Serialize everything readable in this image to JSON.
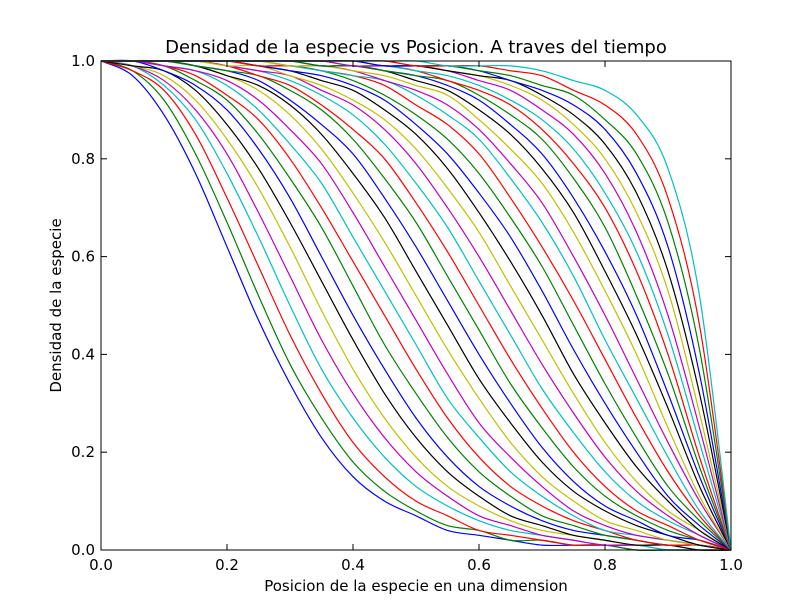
{
  "chart_data": {
    "type": "line",
    "title": "Densidad de la especie vs Posicion. A traves del tiempo",
    "xlabel": "Posicion de la especie en una dimension",
    "ylabel": "Densidad de la especie",
    "xlim": [
      0.0,
      1.0
    ],
    "ylim": [
      0.0,
      1.0
    ],
    "xticks": [
      "0.0",
      "0.2",
      "0.4",
      "0.6",
      "0.8",
      "1.0"
    ],
    "yticks": [
      "0.0",
      "0.2",
      "0.4",
      "0.6",
      "0.8",
      "1.0"
    ],
    "grid": false,
    "legend": "none",
    "color_cycle": [
      "#0000ff",
      "#008000",
      "#ff0000",
      "#00bfbf",
      "#bf00bf",
      "#bfbf00",
      "#000000"
    ],
    "x": [
      0,
      0.05,
      0.1,
      0.15,
      0.2,
      0.25,
      0.3,
      0.35,
      0.4,
      0.45,
      0.5,
      0.55,
      0.6,
      0.65,
      0.7,
      0.75,
      0.8,
      0.85,
      0.9,
      0.95,
      1.0
    ],
    "series": [
      {
        "values": [
          1.0,
          0.97,
          0.89,
          0.77,
          0.62,
          0.47,
          0.34,
          0.23,
          0.15,
          0.1,
          0.07,
          0.04,
          0.03,
          0.02,
          0.01,
          0.01,
          0.01,
          0.0,
          0.0,
          0.0,
          0.0
        ]
      },
      {
        "values": [
          1.0,
          0.98,
          0.92,
          0.81,
          0.67,
          0.52,
          0.38,
          0.27,
          0.18,
          0.12,
          0.08,
          0.05,
          0.04,
          0.02,
          0.02,
          0.01,
          0.01,
          0.0,
          0.0,
          0.0,
          0.0
        ]
      },
      {
        "values": [
          1.0,
          0.98,
          0.94,
          0.85,
          0.72,
          0.58,
          0.44,
          0.32,
          0.22,
          0.15,
          0.1,
          0.07,
          0.04,
          0.03,
          0.02,
          0.01,
          0.01,
          0.01,
          0.0,
          0.0,
          0.0
        ]
      },
      {
        "values": [
          1.0,
          0.99,
          0.95,
          0.88,
          0.77,
          0.64,
          0.5,
          0.37,
          0.27,
          0.19,
          0.13,
          0.09,
          0.06,
          0.04,
          0.03,
          0.02,
          0.01,
          0.01,
          0.0,
          0.0,
          0.0
        ]
      },
      {
        "values": [
          1.0,
          0.99,
          0.96,
          0.9,
          0.81,
          0.69,
          0.56,
          0.43,
          0.32,
          0.23,
          0.16,
          0.11,
          0.07,
          0.05,
          0.03,
          0.02,
          0.01,
          0.01,
          0.01,
          0.0,
          0.0
        ]
      },
      {
        "values": [
          1.0,
          0.99,
          0.97,
          0.92,
          0.84,
          0.74,
          0.62,
          0.49,
          0.37,
          0.27,
          0.19,
          0.13,
          0.09,
          0.06,
          0.04,
          0.03,
          0.02,
          0.01,
          0.01,
          0.0,
          0.0
        ]
      },
      {
        "values": [
          1.0,
          0.99,
          0.98,
          0.94,
          0.87,
          0.78,
          0.67,
          0.55,
          0.43,
          0.32,
          0.23,
          0.16,
          0.11,
          0.07,
          0.05,
          0.03,
          0.02,
          0.01,
          0.01,
          0.0,
          0.0
        ]
      },
      {
        "values": [
          1.0,
          1.0,
          0.98,
          0.95,
          0.9,
          0.82,
          0.72,
          0.6,
          0.48,
          0.37,
          0.27,
          0.19,
          0.13,
          0.09,
          0.06,
          0.04,
          0.03,
          0.02,
          0.01,
          0.01,
          0.0
        ]
      },
      {
        "values": [
          1.0,
          1.0,
          0.99,
          0.96,
          0.92,
          0.85,
          0.76,
          0.66,
          0.54,
          0.42,
          0.32,
          0.23,
          0.16,
          0.11,
          0.07,
          0.05,
          0.03,
          0.02,
          0.01,
          0.01,
          0.0
        ]
      },
      {
        "values": [
          1.0,
          1.0,
          0.99,
          0.97,
          0.93,
          0.88,
          0.8,
          0.7,
          0.59,
          0.48,
          0.37,
          0.27,
          0.19,
          0.13,
          0.09,
          0.06,
          0.04,
          0.02,
          0.01,
          0.01,
          0.0
        ]
      },
      {
        "values": [
          1.0,
          1.0,
          0.99,
          0.98,
          0.95,
          0.9,
          0.83,
          0.75,
          0.64,
          0.53,
          0.42,
          0.31,
          0.23,
          0.16,
          0.11,
          0.07,
          0.04,
          0.03,
          0.02,
          0.01,
          0.0
        ]
      },
      {
        "values": [
          1.0,
          1.0,
          0.99,
          0.98,
          0.96,
          0.92,
          0.86,
          0.79,
          0.69,
          0.58,
          0.47,
          0.36,
          0.26,
          0.19,
          0.13,
          0.08,
          0.05,
          0.03,
          0.02,
          0.01,
          0.0
        ]
      },
      {
        "values": [
          1.0,
          1.0,
          1.0,
          0.99,
          0.97,
          0.94,
          0.89,
          0.82,
          0.73,
          0.63,
          0.52,
          0.41,
          0.31,
          0.22,
          0.15,
          0.1,
          0.06,
          0.04,
          0.02,
          0.01,
          0.0
        ]
      },
      {
        "values": [
          1.0,
          1.0,
          1.0,
          0.99,
          0.97,
          0.95,
          0.91,
          0.85,
          0.77,
          0.68,
          0.57,
          0.46,
          0.35,
          0.26,
          0.18,
          0.12,
          0.08,
          0.05,
          0.03,
          0.01,
          0.0
        ]
      },
      {
        "values": [
          1.0,
          1.0,
          1.0,
          0.99,
          0.98,
          0.96,
          0.92,
          0.87,
          0.81,
          0.72,
          0.62,
          0.51,
          0.4,
          0.3,
          0.21,
          0.14,
          0.09,
          0.06,
          0.03,
          0.02,
          0.0
        ]
      },
      {
        "values": [
          1.0,
          1.0,
          1.0,
          0.99,
          0.98,
          0.97,
          0.94,
          0.9,
          0.84,
          0.76,
          0.67,
          0.56,
          0.45,
          0.34,
          0.25,
          0.17,
          0.11,
          0.07,
          0.04,
          0.02,
          0.0
        ]
      },
      {
        "values": [
          1.0,
          1.0,
          1.0,
          1.0,
          0.99,
          0.97,
          0.95,
          0.91,
          0.86,
          0.8,
          0.71,
          0.61,
          0.5,
          0.39,
          0.29,
          0.2,
          0.13,
          0.08,
          0.05,
          0.02,
          0.0
        ]
      },
      {
        "values": [
          1.0,
          1.0,
          1.0,
          1.0,
          0.99,
          0.98,
          0.96,
          0.93,
          0.89,
          0.83,
          0.75,
          0.66,
          0.55,
          0.44,
          0.33,
          0.24,
          0.16,
          0.1,
          0.06,
          0.03,
          0.0
        ]
      },
      {
        "values": [
          1.0,
          1.0,
          1.0,
          1.0,
          0.99,
          0.98,
          0.97,
          0.94,
          0.91,
          0.86,
          0.79,
          0.7,
          0.6,
          0.49,
          0.38,
          0.28,
          0.19,
          0.12,
          0.07,
          0.03,
          0.0
        ]
      },
      {
        "values": [
          1.0,
          1.0,
          1.0,
          1.0,
          0.99,
          0.99,
          0.97,
          0.95,
          0.92,
          0.88,
          0.82,
          0.74,
          0.65,
          0.54,
          0.43,
          0.32,
          0.22,
          0.14,
          0.08,
          0.04,
          0.0
        ]
      },
      {
        "values": [
          1.0,
          1.0,
          1.0,
          1.0,
          1.0,
          0.99,
          0.98,
          0.96,
          0.94,
          0.9,
          0.85,
          0.78,
          0.69,
          0.59,
          0.48,
          0.36,
          0.26,
          0.17,
          0.1,
          0.04,
          0.0
        ]
      },
      {
        "values": [
          1.0,
          1.0,
          1.0,
          1.0,
          1.0,
          0.99,
          0.98,
          0.97,
          0.95,
          0.92,
          0.87,
          0.81,
          0.73,
          0.64,
          0.53,
          0.41,
          0.3,
          0.2,
          0.11,
          0.05,
          0.0
        ]
      },
      {
        "values": [
          1.0,
          1.0,
          1.0,
          1.0,
          1.0,
          0.99,
          0.99,
          0.98,
          0.96,
          0.93,
          0.89,
          0.84,
          0.77,
          0.68,
          0.58,
          0.46,
          0.34,
          0.23,
          0.13,
          0.06,
          0.0
        ]
      },
      {
        "values": [
          1.0,
          1.0,
          1.0,
          1.0,
          1.0,
          0.99,
          0.99,
          0.98,
          0.97,
          0.95,
          0.91,
          0.87,
          0.81,
          0.72,
          0.62,
          0.51,
          0.39,
          0.27,
          0.16,
          0.07,
          0.0
        ]
      },
      {
        "values": [
          1.0,
          1.0,
          1.0,
          1.0,
          1.0,
          1.0,
          0.99,
          0.98,
          0.97,
          0.96,
          0.93,
          0.89,
          0.84,
          0.76,
          0.67,
          0.56,
          0.43,
          0.31,
          0.19,
          0.08,
          0.0
        ]
      },
      {
        "values": [
          1.0,
          1.0,
          1.0,
          1.0,
          1.0,
          1.0,
          0.99,
          0.99,
          0.98,
          0.96,
          0.94,
          0.91,
          0.86,
          0.79,
          0.71,
          0.6,
          0.48,
          0.35,
          0.22,
          0.1,
          0.0
        ]
      },
      {
        "values": [
          1.0,
          1.0,
          1.0,
          1.0,
          1.0,
          1.0,
          0.99,
          0.99,
          0.98,
          0.97,
          0.95,
          0.93,
          0.88,
          0.82,
          0.75,
          0.65,
          0.53,
          0.4,
          0.25,
          0.11,
          0.0
        ]
      },
      {
        "values": [
          1.0,
          1.0,
          1.0,
          1.0,
          1.0,
          1.0,
          1.0,
          0.99,
          0.99,
          0.98,
          0.96,
          0.94,
          0.9,
          0.85,
          0.78,
          0.69,
          0.57,
          0.44,
          0.29,
          0.13,
          0.0
        ]
      },
      {
        "values": [
          1.0,
          1.0,
          1.0,
          1.0,
          1.0,
          1.0,
          1.0,
          0.99,
          0.99,
          0.98,
          0.97,
          0.95,
          0.92,
          0.87,
          0.81,
          0.72,
          0.61,
          0.48,
          0.32,
          0.15,
          0.0
        ]
      },
      {
        "values": [
          1.0,
          1.0,
          1.0,
          1.0,
          1.0,
          1.0,
          1.0,
          0.99,
          0.99,
          0.98,
          0.97,
          0.96,
          0.93,
          0.89,
          0.84,
          0.76,
          0.66,
          0.52,
          0.36,
          0.17,
          0.0
        ]
      },
      {
        "values": [
          1.0,
          1.0,
          1.0,
          1.0,
          1.0,
          1.0,
          1.0,
          1.0,
          0.99,
          0.99,
          0.98,
          0.96,
          0.94,
          0.91,
          0.86,
          0.79,
          0.7,
          0.57,
          0.4,
          0.19,
          0.0
        ]
      },
      {
        "values": [
          1.0,
          1.0,
          1.0,
          1.0,
          1.0,
          1.0,
          1.0,
          1.0,
          0.99,
          0.99,
          0.98,
          0.97,
          0.95,
          0.92,
          0.88,
          0.82,
          0.73,
          0.61,
          0.44,
          0.22,
          0.0
        ]
      },
      {
        "values": [
          1.0,
          1.0,
          1.0,
          1.0,
          1.0,
          1.0,
          1.0,
          1.0,
          0.99,
          0.99,
          0.99,
          0.98,
          0.96,
          0.94,
          0.9,
          0.85,
          0.77,
          0.65,
          0.48,
          0.25,
          0.0
        ]
      },
      {
        "values": [
          1.0,
          1.0,
          1.0,
          1.0,
          1.0,
          1.0,
          1.0,
          1.0,
          1.0,
          0.99,
          0.99,
          0.98,
          0.97,
          0.95,
          0.92,
          0.87,
          0.8,
          0.69,
          0.53,
          0.28,
          0.0
        ]
      },
      {
        "values": [
          1.0,
          1.0,
          1.0,
          1.0,
          1.0,
          1.0,
          1.0,
          1.0,
          1.0,
          0.99,
          0.99,
          0.98,
          0.97,
          0.96,
          0.93,
          0.89,
          0.83,
          0.73,
          0.57,
          0.32,
          0.0
        ]
      },
      {
        "values": [
          1.0,
          1.0,
          1.0,
          1.0,
          1.0,
          1.0,
          1.0,
          1.0,
          1.0,
          0.99,
          0.99,
          0.99,
          0.98,
          0.96,
          0.94,
          0.91,
          0.86,
          0.77,
          0.62,
          0.36,
          0.0
        ]
      },
      {
        "values": [
          1.0,
          1.0,
          1.0,
          1.0,
          1.0,
          1.0,
          1.0,
          1.0,
          1.0,
          1.0,
          0.99,
          0.99,
          0.98,
          0.97,
          0.95,
          0.93,
          0.88,
          0.81,
          0.67,
          0.41,
          0.0
        ]
      },
      {
        "values": [
          1.0,
          1.0,
          1.0,
          1.0,
          1.0,
          1.0,
          1.0,
          1.0,
          1.0,
          1.0,
          0.99,
          0.99,
          0.99,
          0.98,
          0.97,
          0.94,
          0.91,
          0.85,
          0.72,
          0.46,
          0.0
        ]
      },
      {
        "values": [
          1.0,
          1.0,
          1.0,
          1.0,
          1.0,
          1.0,
          1.0,
          1.0,
          1.0,
          1.0,
          1.0,
          0.99,
          0.99,
          0.99,
          0.98,
          0.96,
          0.94,
          0.89,
          0.78,
          0.52,
          0.0
        ]
      }
    ]
  }
}
